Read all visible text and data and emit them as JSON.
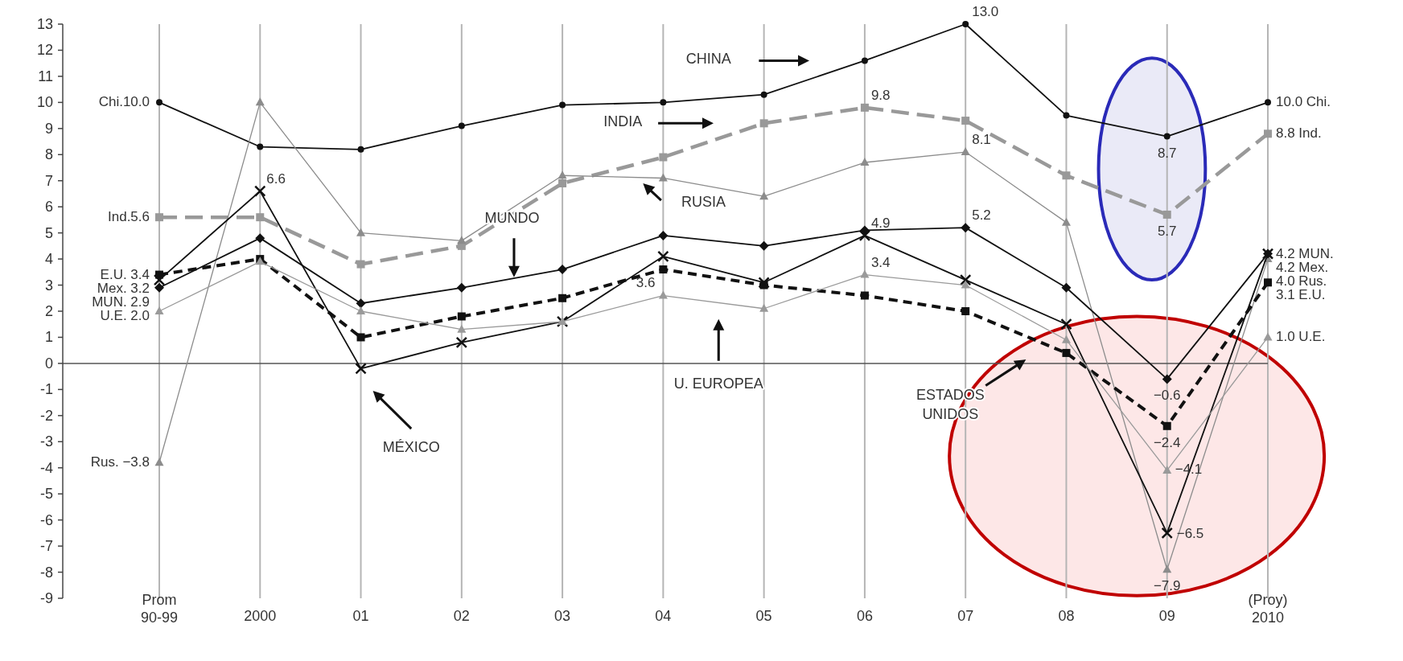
{
  "chart_data": {
    "type": "line",
    "categories": [
      "Prom\n90-99",
      "2000",
      "01",
      "02",
      "03",
      "04",
      "05",
      "06",
      "07",
      "08",
      "09",
      "(Proy)\n2010"
    ],
    "ylim": [
      -9,
      13
    ],
    "yticks": [
      -9,
      -8,
      -7,
      -6,
      -5,
      -4,
      -3,
      -2,
      -1,
      0,
      1,
      2,
      3,
      4,
      5,
      6,
      7,
      8,
      9,
      10,
      11,
      12,
      13
    ],
    "grid": "x",
    "annotations": [
      "CHINA",
      "INDIA",
      "RUSIA",
      "MUNDO",
      "ESTADOS UNIDOS",
      "MÉXICO",
      "U. EUROPEA"
    ],
    "ref_lines": [
      {
        "axis": "y",
        "value": 0,
        "color": "#555555"
      }
    ],
    "series": [
      {
        "color": "#111111",
        "marker": "circle",
        "line_style": "solid",
        "values": [
          10.0,
          8.3,
          8.2,
          9.1,
          9.9,
          10.0,
          10.3,
          11.6,
          13.0,
          9.5,
          8.7,
          10.0
        ],
        "value_labels": [
          "Chi.10.0",
          null,
          null,
          null,
          null,
          null,
          null,
          null,
          "13.0",
          null,
          "8.7",
          "10.0 Chi."
        ]
      },
      {
        "color": "#999999",
        "marker": "square",
        "line_style": "dashed",
        "values": [
          5.6,
          5.6,
          3.8,
          4.5,
          6.9,
          7.9,
          9.2,
          9.8,
          9.3,
          7.2,
          5.7,
          8.8
        ],
        "value_labels": [
          "Ind.5.6",
          null,
          null,
          null,
          null,
          null,
          null,
          "9.8",
          null,
          null,
          "5.7",
          "8.8 Ind."
        ]
      },
      {
        "color": "#8c8c8c",
        "marker": "triangle",
        "line_style": "solid",
        "values": [
          -3.8,
          10.0,
          5.0,
          4.7,
          7.2,
          7.1,
          6.4,
          7.7,
          8.1,
          5.4,
          -7.9,
          4.0
        ],
        "value_labels": [
          "Rus. −3.8",
          null,
          null,
          null,
          null,
          null,
          null,
          null,
          "8.1",
          null,
          "−7.9",
          "4.0 Rus."
        ]
      },
      {
        "color": "#111111",
        "marker": "diamond",
        "line_style": "solid",
        "values": [
          2.9,
          4.8,
          2.3,
          2.9,
          3.6,
          4.9,
          4.5,
          5.1,
          5.2,
          2.9,
          -0.6,
          4.2
        ],
        "value_labels": [
          "MUN. 2.9",
          null,
          null,
          null,
          null,
          null,
          null,
          null,
          "5.2",
          null,
          "−0.6",
          "4.2 MUN."
        ]
      },
      {
        "color": "#111111",
        "marker": "square",
        "line_style": "dashed",
        "values": [
          3.4,
          4.0,
          1.0,
          1.8,
          2.5,
          3.6,
          3.0,
          2.6,
          2.0,
          0.4,
          -2.4,
          3.1
        ],
        "value_labels": [
          "E.U. 3.4",
          null,
          null,
          null,
          null,
          "3.6",
          null,
          null,
          null,
          null,
          "−2.4",
          "3.1 E.U."
        ]
      },
      {
        "color": "#111111",
        "marker": "cross",
        "line_style": "solid",
        "values": [
          3.2,
          6.6,
          -0.2,
          0.8,
          1.6,
          4.1,
          3.1,
          4.9,
          3.2,
          1.5,
          -6.5,
          4.2
        ],
        "value_labels": [
          "Mex. 3.2",
          "6.6",
          null,
          null,
          null,
          null,
          null,
          "4.9",
          null,
          null,
          "−6.5",
          "4.2 Mex."
        ]
      },
      {
        "color": "#9a9a9a",
        "marker": "triangle",
        "line_style": "solid",
        "values": [
          2.0,
          3.9,
          2.0,
          1.3,
          1.6,
          2.6,
          2.1,
          3.4,
          3.0,
          0.9,
          -4.1,
          1.0
        ],
        "value_labels": [
          "U.E. 2.0",
          null,
          null,
          null,
          null,
          null,
          null,
          "3.4",
          null,
          null,
          "−4.1",
          "1.0 U.E."
        ]
      }
    ]
  }
}
